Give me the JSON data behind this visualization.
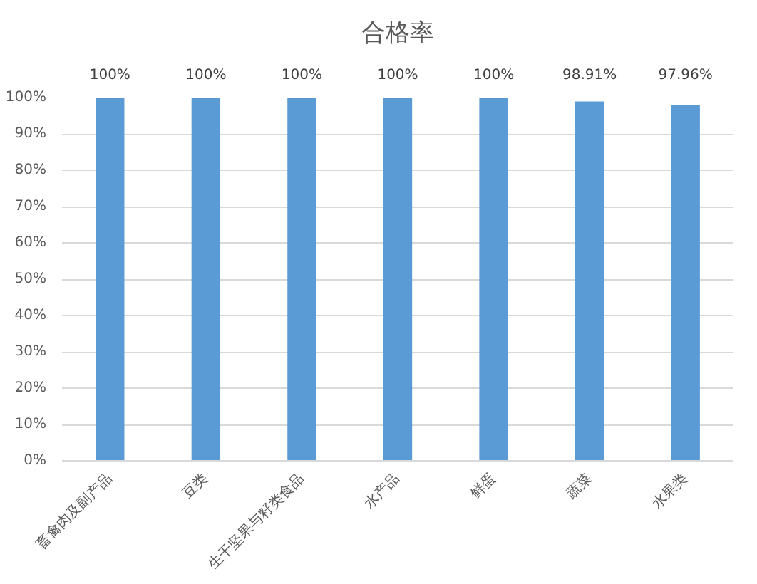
{
  "chart_data": {
    "type": "bar",
    "title": "合格率",
    "categories": [
      "畜禽肉及副产品",
      "豆类",
      "生干坚果与籽类食品",
      "水产品",
      "鲜蛋",
      "蔬菜",
      "水果类"
    ],
    "values": [
      100,
      100,
      100,
      100,
      100,
      98.91,
      97.96
    ],
    "value_labels": [
      "100%",
      "100%",
      "100%",
      "100%",
      "100%",
      "98.91%",
      "97.96%"
    ],
    "color": "#5b9bd5",
    "ylim": [
      0,
      100
    ],
    "yticks": [
      {
        "value": 0,
        "label": "0%"
      },
      {
        "value": 10,
        "label": "10%"
      },
      {
        "value": 20,
        "label": "20%"
      },
      {
        "value": 30,
        "label": "30%"
      },
      {
        "value": 40,
        "label": "40%"
      },
      {
        "value": 50,
        "label": "50%"
      },
      {
        "value": 60,
        "label": "60%"
      },
      {
        "value": 70,
        "label": "70%"
      },
      {
        "value": 80,
        "label": "80%"
      },
      {
        "value": 90,
        "label": "90%"
      },
      {
        "value": 100,
        "label": "100%"
      }
    ],
    "grid": "y"
  }
}
